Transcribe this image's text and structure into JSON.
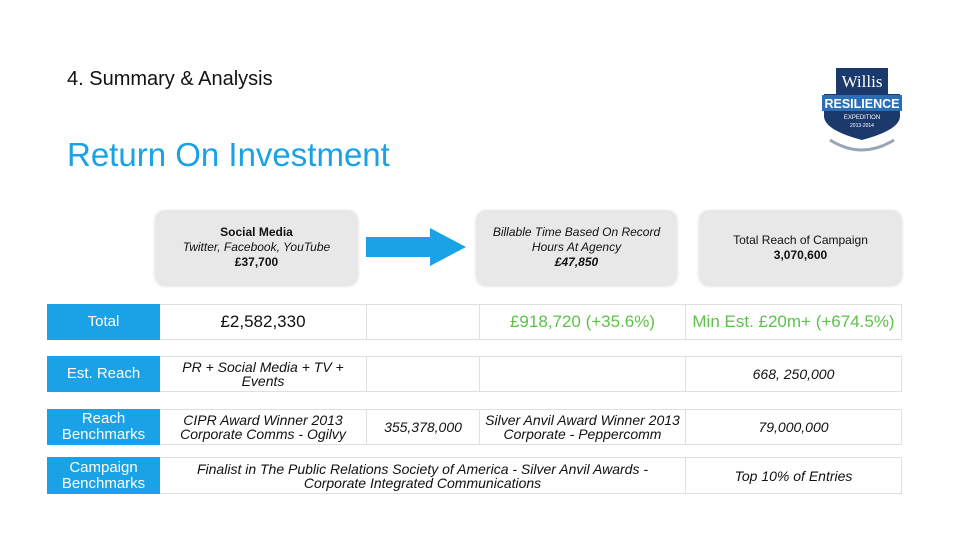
{
  "header": {
    "section_title": "4. Summary & Analysis",
    "title": "Return On Investment"
  },
  "logo": {
    "top": "Willis",
    "main": "RESILIENCE",
    "sub": "EXPEDITION",
    "years": "2013-2014"
  },
  "cards": {
    "social": {
      "title": "Social Media",
      "subtitle": "Twitter, Facebook, YouTube",
      "value": "£37,700"
    },
    "billable": {
      "line1": "Billable Time Based On Record",
      "line2": "Hours At Agency",
      "value": "£47,850"
    },
    "reach": {
      "title": "Total Reach of Campaign",
      "value": "3,070,600"
    }
  },
  "rows": {
    "total": {
      "label": "Total",
      "c2": "£2,582,330",
      "c3": "",
      "c4": "£918,720 (+35.6%)",
      "c5": "Min Est. £20m+ (+674.5%)"
    },
    "est_reach": {
      "label": "Est. Reach",
      "c2_line1": "PR + Social Media + TV +",
      "c2_line2": "Events",
      "c3": "",
      "c4": "",
      "c5": "668, 250,000"
    },
    "reach_benchmarks": {
      "label_line1": "Reach",
      "label_line2": "Benchmarks",
      "c2_line1": "CIPR Award Winner 2013",
      "c2_line2": "Corporate Comms - Ogilvy",
      "c3": "355,378,000",
      "c4_line1": "Silver Anvil Award Winner 2013",
      "c4_line2": "Corporate - Peppercomm",
      "c5": "79,000,000"
    },
    "campaign_benchmarks": {
      "label_line1": "Campaign",
      "label_line2": "Benchmarks",
      "c234_line1": "Finalist in The Public Relations Society of America - Silver Anvil Awards -",
      "c234_line2": "Corporate Integrated Communications",
      "c5": "Top 10% of Entries"
    }
  },
  "colors": {
    "accent": "#19a2e6",
    "positive": "#5ec14b",
    "logo_navy": "#1b3a6b"
  }
}
